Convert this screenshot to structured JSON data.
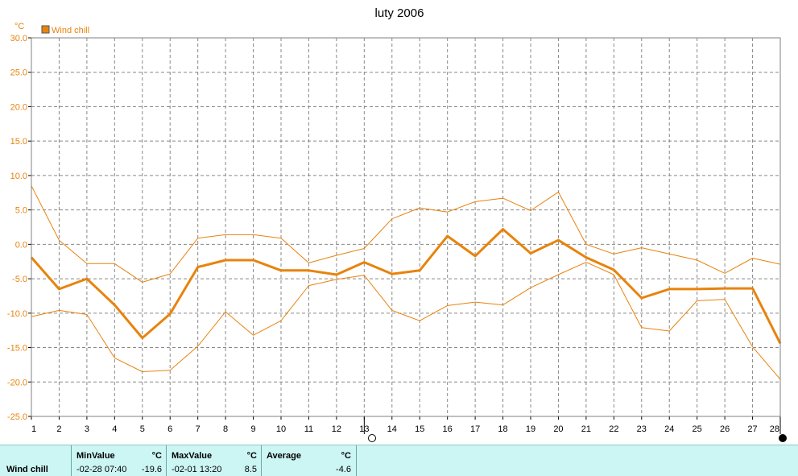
{
  "chart_data": {
    "type": "line",
    "title": "luty 2006",
    "yunit": "°C",
    "legend": "Wind chill",
    "legend_position": "top-left",
    "ylim": [
      -25,
      30
    ],
    "yticks": [
      "30.0",
      "25.0",
      "20.0",
      "15.0",
      "10.0",
      "5.0",
      "0.0",
      "-5.0",
      "-10.0",
      "-15.0",
      "-20.0",
      "-25.0"
    ],
    "x": [
      1,
      2,
      3,
      4,
      5,
      6,
      7,
      8,
      9,
      10,
      11,
      12,
      13,
      14,
      15,
      16,
      17,
      18,
      19,
      20,
      21,
      22,
      23,
      24,
      25,
      26,
      27,
      28
    ],
    "grid": true,
    "series": [
      {
        "name": "Wind chill",
        "role": "average",
        "values": [
          -1.9,
          -6.5,
          -5.0,
          -8.8,
          -13.6,
          -10.1,
          -3.3,
          -2.3,
          -2.3,
          -3.8,
          -3.8,
          -4.4,
          -2.6,
          -4.3,
          -3.8,
          1.2,
          -1.7,
          2.2,
          -1.3,
          0.6,
          -1.9,
          -3.7,
          -7.8,
          -6.5,
          -6.5,
          -6.4,
          -6.4,
          -14.4
        ]
      },
      {
        "role": "max",
        "values": [
          8.5,
          0.6,
          -2.8,
          -2.8,
          -5.5,
          -4.3,
          0.9,
          1.4,
          1.4,
          0.9,
          -2.7,
          -1.6,
          -0.6,
          3.7,
          5.3,
          4.7,
          6.2,
          6.7,
          4.9,
          7.6,
          0.0,
          -1.4,
          -0.5,
          -1.4,
          -2.3,
          -4.2,
          -2.0,
          -2.9
        ]
      },
      {
        "role": "min",
        "values": [
          -10.5,
          -9.6,
          -10.2,
          -16.5,
          -18.5,
          -18.3,
          -14.8,
          -9.8,
          -13.2,
          -11.1,
          -6.0,
          -5.1,
          -4.5,
          -9.6,
          -11.1,
          -8.9,
          -8.4,
          -8.8,
          -6.3,
          -4.4,
          -2.6,
          -4.4,
          -12.1,
          -12.6,
          -8.2,
          -8.0,
          -14.9,
          -19.6
        ]
      }
    ]
  },
  "colors": {
    "series": "#e8830c",
    "grid": "#888888",
    "panel": "#ccf6f4"
  },
  "stats": {
    "row_label": "Wind chill",
    "min_header": "MinValue",
    "max_header": "MaxValue",
    "avg_header": "Average",
    "unit": "°C",
    "min_time": "-02-28  07:40",
    "min_value": "-19.6",
    "max_time": "-02-01  13:20",
    "max_value": "8.5",
    "avg_value": "-4.6"
  }
}
